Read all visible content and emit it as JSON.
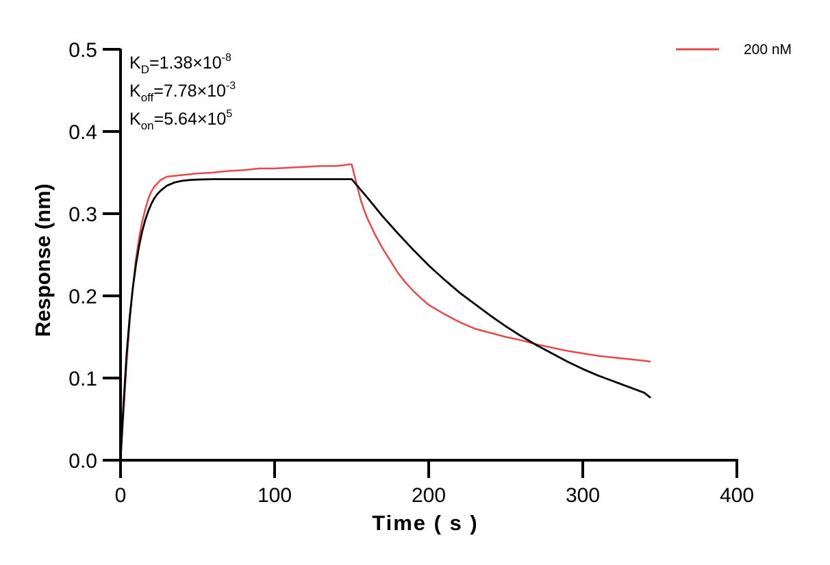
{
  "chart_data": {
    "type": "line",
    "title": "",
    "xlabel": "Time ( s )",
    "ylabel": "Response (nm)",
    "xlim": [
      0,
      400
    ],
    "ylim": [
      0,
      0.5
    ],
    "x_ticks": [
      "0",
      "100",
      "200",
      "300",
      "400"
    ],
    "y_ticks": [
      "0.0",
      "0.1",
      "0.2",
      "0.3",
      "0.4",
      "0.5"
    ],
    "grid": false,
    "legend_position": "top-right",
    "annotations": [
      {
        "base": "K",
        "sub": "D",
        "text": "=1.38×10",
        "sup": "-8"
      },
      {
        "base": "K",
        "sub": "off",
        "text": "=7.78×10",
        "sup": "-3"
      },
      {
        "base": "K",
        "sub": "on",
        "text": "=5.64×10",
        "sup": "5"
      }
    ],
    "series": [
      {
        "name": "200 nM",
        "color": "#e8474b",
        "x": [
          0,
          2,
          4,
          6,
          8,
          10,
          12,
          14,
          16,
          18,
          20,
          22,
          24,
          26,
          28,
          30,
          35,
          40,
          45,
          50,
          60,
          70,
          80,
          90,
          100,
          110,
          120,
          130,
          140,
          145,
          148,
          150,
          152,
          154,
          156,
          158,
          160,
          165,
          170,
          175,
          180,
          185,
          190,
          195,
          200,
          210,
          220,
          230,
          240,
          250,
          260,
          270,
          280,
          290,
          300,
          310,
          320,
          330,
          340,
          344
        ],
        "y": [
          0.0,
          0.06,
          0.12,
          0.17,
          0.21,
          0.245,
          0.27,
          0.29,
          0.305,
          0.318,
          0.327,
          0.333,
          0.337,
          0.341,
          0.343,
          0.345,
          0.346,
          0.347,
          0.348,
          0.349,
          0.35,
          0.352,
          0.353,
          0.355,
          0.355,
          0.356,
          0.357,
          0.358,
          0.358,
          0.359,
          0.36,
          0.36,
          0.345,
          0.33,
          0.316,
          0.305,
          0.295,
          0.275,
          0.258,
          0.243,
          0.228,
          0.216,
          0.206,
          0.197,
          0.189,
          0.178,
          0.168,
          0.16,
          0.155,
          0.15,
          0.146,
          0.141,
          0.137,
          0.133,
          0.13,
          0.127,
          0.125,
          0.123,
          0.121,
          0.12
        ]
      },
      {
        "name": "",
        "color": "#000000",
        "x": [
          0,
          2,
          4,
          6,
          8,
          10,
          12,
          14,
          16,
          18,
          20,
          22,
          24,
          26,
          28,
          30,
          35,
          40,
          45,
          50,
          60,
          70,
          80,
          90,
          100,
          110,
          120,
          130,
          140,
          150,
          160,
          170,
          180,
          190,
          200,
          210,
          220,
          230,
          240,
          250,
          260,
          270,
          280,
          290,
          300,
          310,
          320,
          330,
          340,
          344
        ],
        "y": [
          0.0,
          0.07,
          0.13,
          0.175,
          0.21,
          0.238,
          0.26,
          0.278,
          0.292,
          0.303,
          0.312,
          0.319,
          0.324,
          0.328,
          0.331,
          0.334,
          0.338,
          0.34,
          0.341,
          0.3415,
          0.342,
          0.342,
          0.342,
          0.342,
          0.342,
          0.342,
          0.342,
          0.342,
          0.342,
          0.342,
          0.32,
          0.297,
          0.276,
          0.256,
          0.237,
          0.22,
          0.204,
          0.19,
          0.176,
          0.163,
          0.151,
          0.14,
          0.13,
          0.12,
          0.111,
          0.103,
          0.096,
          0.089,
          0.082,
          0.076
        ]
      }
    ]
  }
}
